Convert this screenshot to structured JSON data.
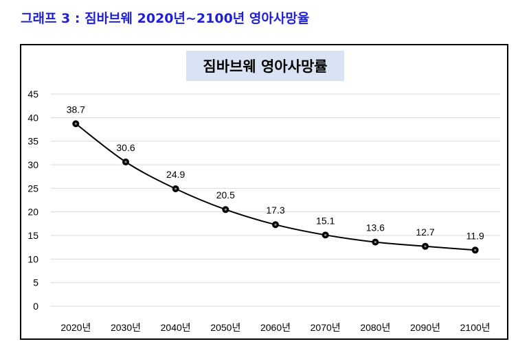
{
  "caption": "그래프 3 : 짐바브웨 2020년~2100년 영아사망율",
  "chart_data": {
    "type": "line",
    "title": "짐바브웨 영아사망률",
    "categories": [
      "2020년",
      "2030년",
      "2040년",
      "2050년",
      "2060년",
      "2070년",
      "2080년",
      "2090년",
      "2100년"
    ],
    "values": [
      38.7,
      30.6,
      24.9,
      20.5,
      17.3,
      15.1,
      13.6,
      12.7,
      11.9
    ],
    "y_ticks": [
      "0",
      "5",
      "10",
      "15",
      "20",
      "25",
      "30",
      "35",
      "40",
      "45"
    ],
    "ylim": [
      0,
      45
    ],
    "grid": true,
    "line_color": "#000000"
  }
}
